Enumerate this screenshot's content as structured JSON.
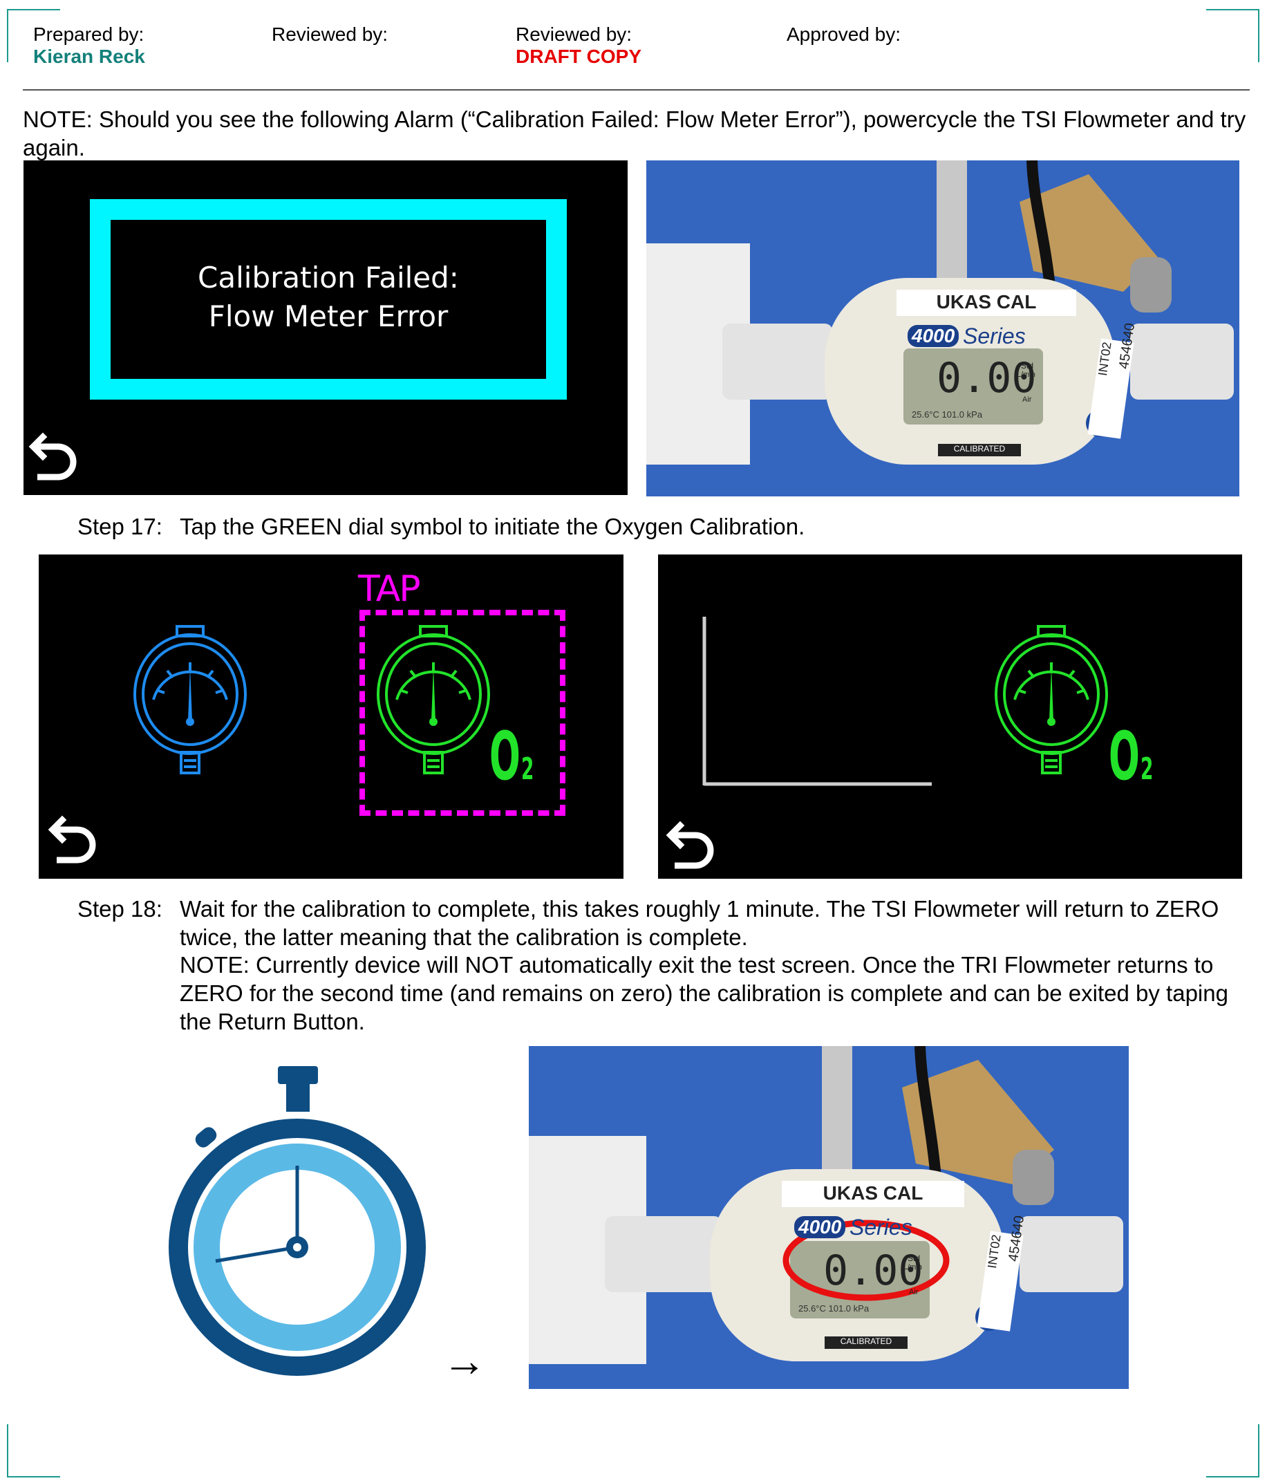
{
  "header": {
    "prepared_by_label": "Prepared by:",
    "prepared_by_name": "Kieran Reck",
    "reviewed_by_1_label": "Reviewed by:",
    "reviewed_by_2_label": "Reviewed by:",
    "reviewed_by_2_value": "DRAFT COPY",
    "approved_by_label": "Approved by:",
    "name_color": "#13807a",
    "draft_color": "#e60000"
  },
  "note_alarm": "NOTE: Should you see the following Alarm (“Calibration Failed: Flow Meter Error”), powercycle the TSI Flowmeter and try again.",
  "alarm_screen": {
    "line1": "Calibration Failed:",
    "line2": "Flow Meter Error",
    "frame_color": "#00f6ff"
  },
  "flowmeter_photo": {
    "tag": "UKAS CAL",
    "model": "4000",
    "series": "Series",
    "reading": "0.00",
    "unit_std": "Std",
    "unit_lmin": "L/min",
    "gas": "Air",
    "temp_pressure": "25.6°C 101.0 kPa",
    "calibrated": "CALIBRATED",
    "side_id": "454640",
    "side_code": "INT02",
    "brand": "TSI"
  },
  "step17": {
    "number": "Step 17:",
    "text": "Tap the GREEN dial symbol to initiate the Oxygen Calibration."
  },
  "tap_screen": {
    "tap_label": "TAP",
    "o2_main": "O",
    "o2_sub": "2",
    "tap_color": "#ff00ff",
    "green": "#22e32a",
    "blue": "#1e8cf0"
  },
  "step18": {
    "number": "Step 18:",
    "text1": "Wait for the calibration to complete, this takes roughly 1 minute. The TSI Flowmeter will return to ZERO twice, the latter meaning that the calibration is complete.",
    "text2": "NOTE: Currently device will NOT automatically exit the test screen. Once the TRI Flowmeter returns to ZERO for the second time (and remains on zero) the calibration is complete and can be exited by taping the Return Button."
  },
  "arrow_glyph": "→"
}
